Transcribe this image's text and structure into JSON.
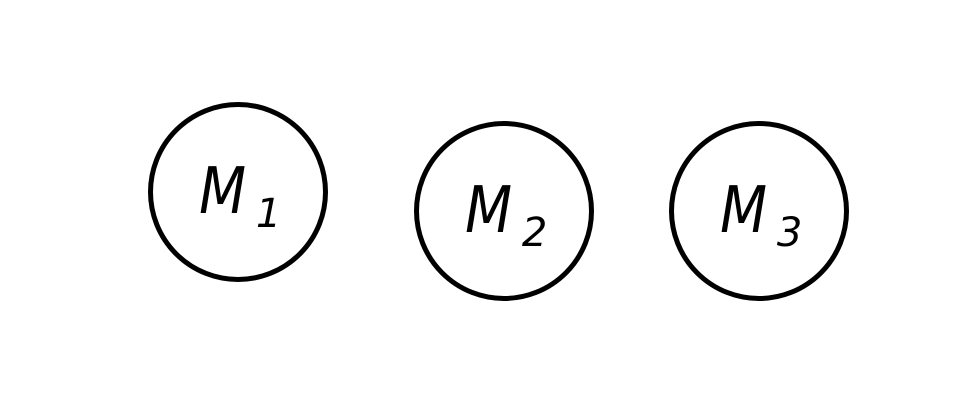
{
  "diagram": {
    "nodes": [
      {
        "letter": "M",
        "subscript": "1"
      },
      {
        "letter": "M",
        "subscript": "2"
      },
      {
        "letter": "M",
        "subscript": "3"
      }
    ]
  },
  "colors": {
    "stroke": "#000000",
    "background": "#ffffff"
  }
}
